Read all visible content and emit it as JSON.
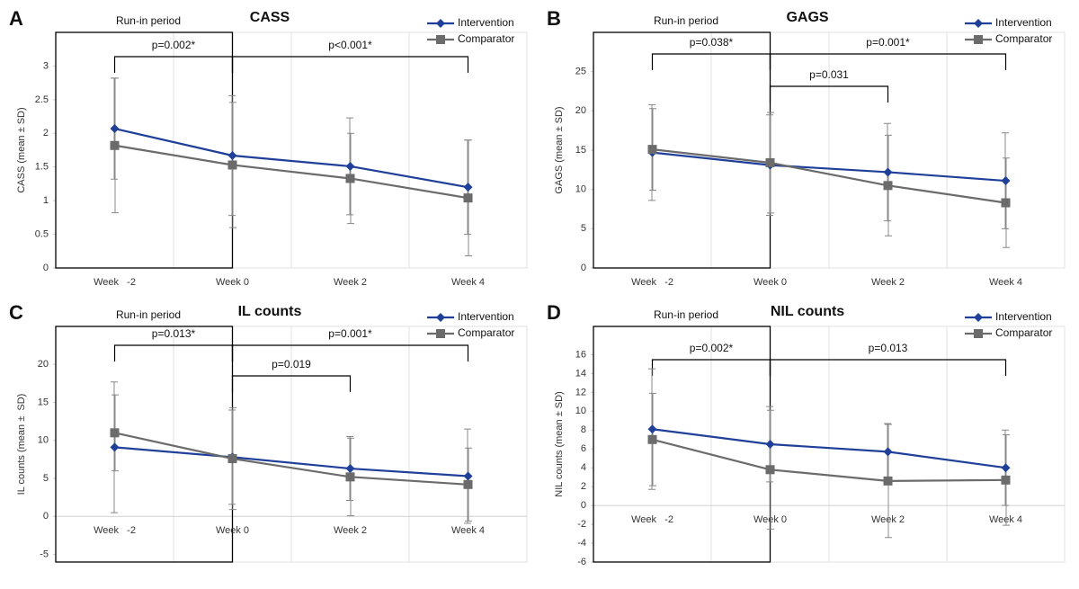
{
  "chart_data": [
    {
      "type": "line",
      "panel": "A",
      "title": "CASS",
      "ylabel": "CASS (mean ± SD)",
      "run_in_label": "Run-in period",
      "p_values": [
        "p=0.002*",
        "p<0.001*"
      ],
      "legend": "upper right",
      "categories": [
        "Week   -2",
        "Week 0",
        "Week 2",
        "Week 4"
      ],
      "series": [
        {
          "name": "Intervention",
          "color": "#1f3f99",
          "marker": "diamond",
          "values": [
            2.07,
            1.67,
            1.51,
            1.2
          ],
          "errors": [
            0.75,
            0.89,
            0.72,
            0.7
          ]
        },
        {
          "name": "Comparator",
          "color": "#6b6b6b",
          "marker": "square",
          "values": [
            1.82,
            1.53,
            1.33,
            1.04
          ],
          "errors": [
            1.0,
            0.93,
            0.67,
            0.86
          ]
        }
      ],
      "ylim": [
        0,
        3.5
      ],
      "yticks": [
        0,
        0.5,
        1,
        1.5,
        2,
        2.5,
        3
      ]
    },
    {
      "type": "line",
      "panel": "B",
      "title": "GAGS",
      "ylabel": "GAGS (mean ± SD)",
      "run_in_label": "Run-in period",
      "p_values": [
        "p=0.038*",
        "p=0.001*",
        "p=0.031"
      ],
      "legend": "upper right",
      "categories": [
        "Week   -2",
        "Week 0",
        "Week 2",
        "Week 4"
      ],
      "series": [
        {
          "name": "Intervention",
          "color": "#1f3f99",
          "marker": "diamond",
          "values": [
            14.7,
            13.1,
            12.2,
            11.1
          ],
          "errors": [
            6.1,
            6.4,
            6.2,
            6.1
          ]
        },
        {
          "name": "Comparator",
          "color": "#6b6b6b",
          "marker": "square",
          "values": [
            15.1,
            13.4,
            10.5,
            8.3
          ],
          "errors": [
            5.2,
            6.4,
            6.4,
            5.7
          ]
        }
      ],
      "ylim": [
        0,
        30
      ],
      "yticks": [
        0,
        5,
        10,
        15,
        20,
        25
      ]
    },
    {
      "type": "line",
      "panel": "C",
      "title": "IL counts",
      "ylabel": "IL counts (mean ±  SD)",
      "run_in_label": "Run-in period",
      "p_values": [
        "p=0.013*",
        "p=0.001*",
        "p=0.019"
      ],
      "legend": "upper right",
      "categories": [
        "Week   -2",
        "Week 0",
        "Week 2",
        "Week 4"
      ],
      "series": [
        {
          "name": "Intervention",
          "color": "#1f3f99",
          "marker": "diamond",
          "values": [
            9.1,
            7.8,
            6.3,
            5.3
          ],
          "errors": [
            8.6,
            6.2,
            4.2,
            6.2
          ]
        },
        {
          "name": "Comparator",
          "color": "#6b6b6b",
          "marker": "square",
          "values": [
            11.0,
            7.6,
            5.2,
            4.2
          ],
          "errors": [
            5.0,
            6.7,
            5.1,
            4.8
          ]
        }
      ],
      "ylim": [
        -6,
        25
      ],
      "yticks": [
        -5,
        0,
        5,
        10,
        15,
        20
      ]
    },
    {
      "type": "line",
      "panel": "D",
      "title": "NIL counts",
      "ylabel": "NIL counts (mean ± SD)",
      "run_in_label": "Run-in period",
      "p_values": [
        "p=0.002*",
        "p=0.013"
      ],
      "legend": "upper right",
      "categories": [
        "Week   -2",
        "Week 0",
        "Week 2",
        "Week 4"
      ],
      "series": [
        {
          "name": "Intervention",
          "color": "#1f3f99",
          "marker": "diamond",
          "values": [
            8.1,
            6.5,
            5.7,
            4.0
          ],
          "errors": [
            6.4,
            4.0,
            3.0,
            4.0
          ]
        },
        {
          "name": "Comparator",
          "color": "#6b6b6b",
          "marker": "square",
          "values": [
            7.0,
            3.8,
            2.6,
            2.7
          ],
          "errors": [
            4.9,
            6.3,
            6.0,
            4.8
          ]
        }
      ],
      "ylim": [
        -6,
        19
      ],
      "yticks": [
        -6,
        -4,
        -2,
        0,
        2,
        4,
        6,
        8,
        10,
        12,
        14,
        16
      ]
    }
  ]
}
